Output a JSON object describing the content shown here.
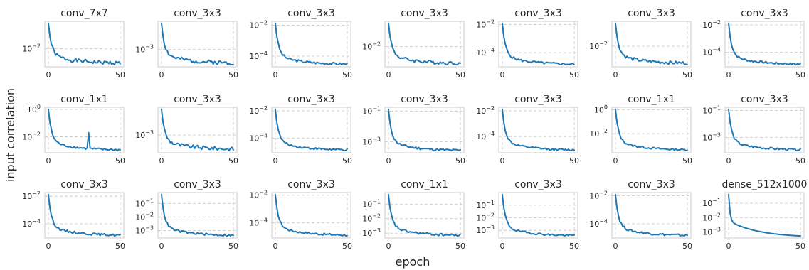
{
  "figure": {
    "ylabel": "input correlation",
    "xlabel": "epoch"
  },
  "chart_data": [
    {
      "type": "line",
      "title": "conv_7x7",
      "xticks": [
        0,
        50
      ],
      "ylog": true,
      "yticks": [
        "10^-2"
      ],
      "start": 0.11,
      "end": 0.0025,
      "seed": 1
    },
    {
      "type": "line",
      "title": "conv_3x3",
      "xticks": [
        0,
        50
      ],
      "ylog": true,
      "yticks": [
        "10^-3"
      ],
      "start": 0.011,
      "end": 0.00028,
      "seed": 2
    },
    {
      "type": "line",
      "title": "conv_3x3",
      "xticks": [
        0,
        50
      ],
      "ylog": true,
      "yticks": [
        "10^-2",
        "10^-4"
      ],
      "start": 0.013,
      "end": 2.8e-05,
      "seed": 3
    },
    {
      "type": "line",
      "title": "conv_3x3",
      "xticks": [
        0,
        50
      ],
      "ylog": true,
      "yticks": [
        "10^-2"
      ],
      "start": 0.11,
      "end": 0.0017,
      "seed": 4
    },
    {
      "type": "line",
      "title": "conv_3x3",
      "xticks": [
        0,
        50
      ],
      "ylog": true,
      "yticks": [
        "10^-2",
        "10^-4"
      ],
      "start": 0.012,
      "end": 1.4e-05,
      "seed": 5
    },
    {
      "type": "line",
      "title": "conv_3x3",
      "xticks": [
        0,
        50
      ],
      "ylog": true,
      "yticks": [
        "10^-2"
      ],
      "start": 0.12,
      "end": 0.0015,
      "seed": 6
    },
    {
      "type": "line",
      "title": "conv_3x3",
      "xticks": [
        0,
        50
      ],
      "ylog": true,
      "yticks": [
        "10^-2",
        "10^-4"
      ],
      "start": 0.013,
      "end": 1.2e-05,
      "seed": 7
    },
    {
      "type": "line",
      "title": "conv_1x1",
      "xticks": [
        0,
        50
      ],
      "ylog": true,
      "yticks": [
        "10^0",
        "10^-2"
      ],
      "start": 1.0,
      "end": 0.001,
      "seed": 8,
      "spike": [
        28,
        0.02
      ]
    },
    {
      "type": "line",
      "title": "conv_3x3",
      "xticks": [
        0,
        50
      ],
      "ylog": true,
      "yticks": [
        "10^-3"
      ],
      "start": 0.012,
      "end": 0.00025,
      "seed": 9
    },
    {
      "type": "line",
      "title": "conv_3x3",
      "xticks": [
        0,
        50
      ],
      "ylog": true,
      "yticks": [
        "10^-2",
        "10^-4"
      ],
      "start": 0.013,
      "end": 1.2e-05,
      "seed": 10
    },
    {
      "type": "line",
      "title": "conv_3x3",
      "xticks": [
        0,
        50
      ],
      "ylog": true,
      "yticks": [
        "10^-1",
        "10^-3"
      ],
      "start": 0.13,
      "end": 0.00025,
      "seed": 11
    },
    {
      "type": "line",
      "title": "conv_3x3",
      "xticks": [
        0,
        50
      ],
      "ylog": true,
      "yticks": [
        "10^-2",
        "10^-4"
      ],
      "start": 0.013,
      "end": 8e-06,
      "seed": 12
    },
    {
      "type": "line",
      "title": "conv_1x1",
      "xticks": [
        0,
        50
      ],
      "ylog": true,
      "yticks": [
        "10^0",
        "10^-2"
      ],
      "start": 1.1,
      "end": 0.0004,
      "seed": 13
    },
    {
      "type": "line",
      "title": "conv_3x3",
      "xticks": [
        0,
        50
      ],
      "ylog": true,
      "yticks": [
        "10^-1",
        "10^-3"
      ],
      "start": 0.12,
      "end": 0.00011,
      "seed": 14
    },
    {
      "type": "line",
      "title": "conv_3x3",
      "xticks": [
        0,
        50
      ],
      "ylog": true,
      "yticks": [
        "10^-2",
        "10^-4"
      ],
      "start": 0.013,
      "end": 1.4e-05,
      "seed": 15
    },
    {
      "type": "line",
      "title": "conv_3x3",
      "xticks": [
        0,
        50
      ],
      "ylog": true,
      "yticks": [
        "10^-1",
        "10^-2",
        "10^-3"
      ],
      "start": 0.45,
      "end": 0.0004,
      "seed": 16
    },
    {
      "type": "line",
      "title": "conv_3x3",
      "xticks": [
        0,
        50
      ],
      "ylog": true,
      "yticks": [
        "10^-2",
        "10^-4"
      ],
      "start": 0.011,
      "end": 1.2e-05,
      "seed": 17
    },
    {
      "type": "line",
      "title": "conv_1x1",
      "xticks": [
        0,
        50
      ],
      "ylog": true,
      "yticks": [
        "10^-1",
        "10^-2",
        "10^-3"
      ],
      "start": 0.45,
      "end": 0.00065,
      "seed": 18
    },
    {
      "type": "line",
      "title": "conv_3x3",
      "xticks": [
        0,
        50
      ],
      "ylog": true,
      "yticks": [
        "10^-1",
        "10^-2",
        "10^-3"
      ],
      "start": 0.7,
      "end": 0.00035,
      "seed": 19
    },
    {
      "type": "line",
      "title": "conv_3x3",
      "xticks": [
        0,
        50
      ],
      "ylog": true,
      "yticks": [
        "10^-2",
        "10^-4"
      ],
      "start": 0.012,
      "end": 1.4e-05,
      "seed": 20
    },
    {
      "type": "line",
      "title": "dense_512x1000",
      "xticks": [
        0,
        50
      ],
      "ylog": true,
      "yticks": [
        "10^-1",
        "10^-2",
        "10^-3"
      ],
      "start": 0.4,
      "end": 0.00045,
      "seed": 21,
      "smooth": true
    }
  ]
}
